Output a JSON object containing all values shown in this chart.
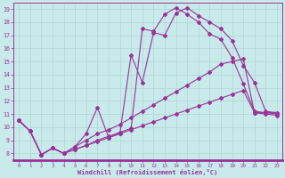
{
  "title": "",
  "xlabel": "Windchill (Refroidissement éolien,°C)",
  "background_color": "#c8eaea",
  "grid_color": "#b0d4d4",
  "line_color": "#993399",
  "xlim": [
    -0.5,
    23.5
  ],
  "ylim": [
    7.5,
    19.5
  ],
  "xticks": [
    0,
    1,
    2,
    3,
    4,
    5,
    6,
    7,
    8,
    9,
    10,
    11,
    12,
    13,
    14,
    15,
    16,
    17,
    18,
    19,
    20,
    21,
    22,
    23
  ],
  "yticks": [
    8,
    9,
    10,
    11,
    12,
    13,
    14,
    15,
    16,
    17,
    18,
    19
  ],
  "line1_x": [
    0,
    1,
    2,
    3,
    4,
    5,
    6,
    7,
    8,
    9,
    10,
    11,
    12,
    13,
    14,
    15,
    16,
    17,
    18,
    19,
    20,
    21,
    22,
    23
  ],
  "line1_y": [
    10.5,
    9.7,
    7.9,
    8.4,
    8.0,
    8.5,
    9.0,
    9.5,
    9.8,
    10.2,
    10.7,
    11.2,
    11.7,
    12.2,
    12.7,
    13.2,
    13.7,
    14.2,
    14.8,
    15.0,
    15.2,
    11.1,
    11.1,
    11.1
  ],
  "line2_x": [
    0,
    1,
    2,
    3,
    4,
    5,
    6,
    7,
    8,
    9,
    10,
    11,
    12,
    13,
    14,
    15,
    16,
    17,
    18,
    19,
    20,
    21,
    22,
    23
  ],
  "line2_y": [
    10.5,
    9.7,
    7.9,
    8.4,
    8.0,
    8.5,
    9.5,
    11.5,
    9.2,
    9.5,
    15.5,
    13.4,
    17.2,
    17.0,
    18.7,
    19.1,
    18.5,
    18.0,
    17.5,
    16.6,
    14.7,
    13.4,
    11.2,
    11.1
  ],
  "line3_x": [
    0,
    1,
    2,
    3,
    4,
    5,
    6,
    7,
    8,
    9,
    10,
    11,
    12,
    13,
    14,
    15,
    16,
    17,
    18,
    19,
    20,
    21,
    22,
    23
  ],
  "line3_y": [
    10.5,
    9.7,
    7.9,
    8.4,
    8.0,
    8.3,
    8.6,
    9.0,
    9.3,
    9.6,
    9.9,
    17.5,
    17.3,
    18.6,
    19.1,
    18.6,
    18.0,
    17.1,
    16.7,
    15.3,
    13.3,
    11.2,
    11.1,
    11.0
  ],
  "line4_x": [
    0,
    1,
    2,
    3,
    4,
    5,
    6,
    7,
    8,
    9,
    10,
    11,
    12,
    13,
    14,
    15,
    16,
    17,
    18,
    19,
    20,
    21,
    22,
    23
  ],
  "line4_y": [
    10.5,
    9.7,
    7.9,
    8.4,
    8.0,
    8.3,
    8.6,
    8.9,
    9.2,
    9.5,
    9.8,
    10.1,
    10.4,
    10.7,
    11.0,
    11.3,
    11.6,
    11.9,
    12.2,
    12.5,
    12.8,
    11.1,
    11.0,
    10.9
  ]
}
